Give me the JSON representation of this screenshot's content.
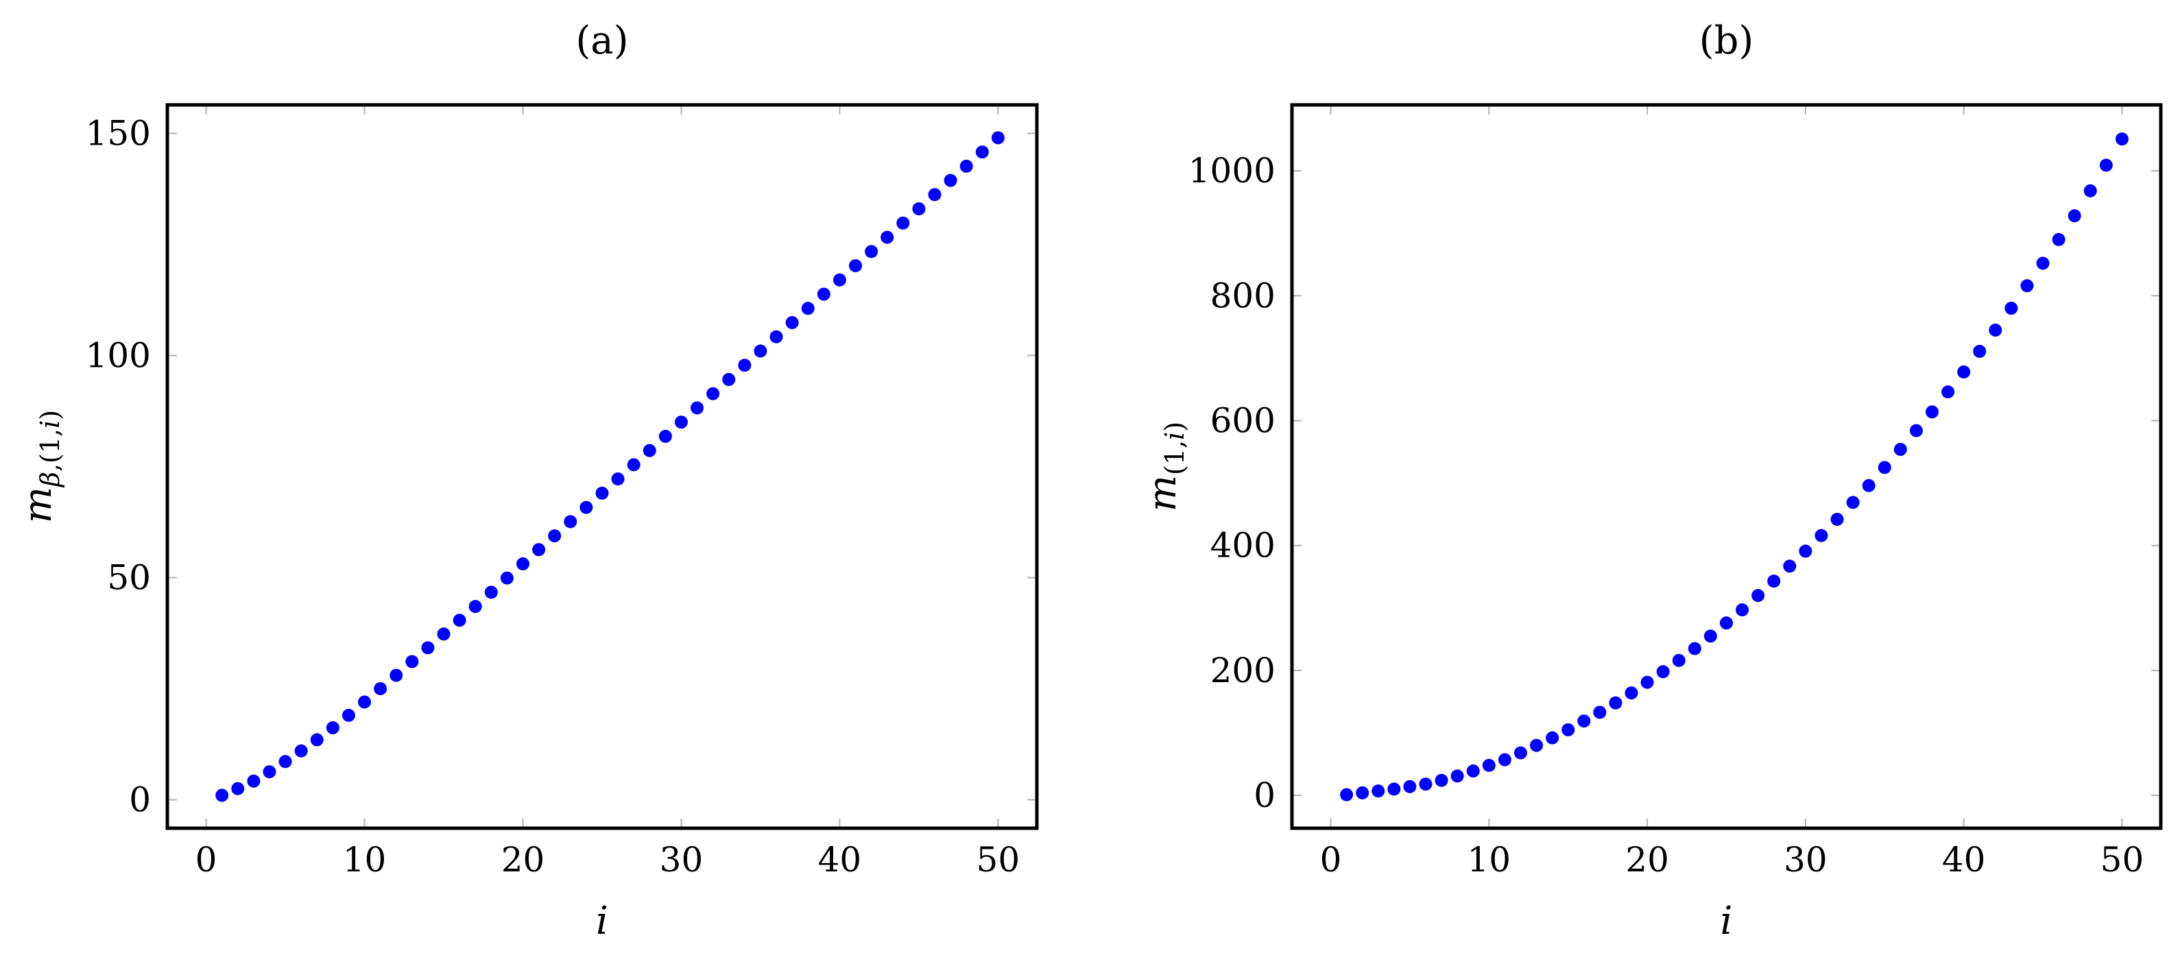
{
  "chart_data": [
    {
      "type": "scatter",
      "title": "(a)",
      "xlabel": "i",
      "ylabel": {
        "main": "m",
        "sub_beta": "β",
        "sub_rest": ",(1,",
        "sub_i": "i",
        "sub_close": ")"
      },
      "xlim": [
        -2.45,
        52.45
      ],
      "ylim": [
        -6.4,
        156.4
      ],
      "xticks": [
        0,
        10,
        20,
        30,
        40,
        50
      ],
      "yticks": [
        0,
        50,
        100,
        150
      ],
      "grid": false,
      "marker_color": "#0000ff",
      "series": [
        {
          "x": [
            1,
            2,
            3,
            4,
            5,
            6,
            7,
            8,
            9,
            10,
            11,
            12,
            13,
            14,
            15,
            16,
            17,
            18,
            19,
            20,
            21,
            22,
            23,
            24,
            25,
            26,
            27,
            28,
            29,
            30,
            31,
            32,
            33,
            34,
            35,
            36,
            37,
            38,
            39,
            40,
            41,
            42,
            43,
            44,
            45,
            46,
            47,
            48,
            49,
            50
          ],
          "values": [
            1.0,
            2.5,
            4.2,
            6.3,
            8.6,
            11.0,
            13.5,
            16.2,
            19.0,
            22.0,
            25.0,
            28.0,
            31.1,
            34.2,
            37.3,
            40.4,
            43.5,
            46.7,
            49.9,
            53.1,
            56.3,
            59.4,
            62.6,
            65.8,
            69.0,
            72.2,
            75.4,
            78.6,
            81.8,
            85.0,
            88.2,
            91.4,
            94.6,
            97.8,
            101.0,
            104.2,
            107.4,
            110.6,
            113.8,
            117.0,
            120.2,
            123.4,
            126.6,
            129.8,
            133.0,
            136.2,
            139.4,
            142.6,
            145.8,
            149.0
          ]
        }
      ]
    },
    {
      "type": "scatter",
      "title": "(b)",
      "xlabel": "i",
      "ylabel": {
        "main": "m",
        "sub_beta": "",
        "sub_rest": "(1,",
        "sub_i": "i",
        "sub_close": ")"
      },
      "xlim": [
        -2.45,
        52.45
      ],
      "ylim": [
        -52.6,
        1105.6
      ],
      "xticks": [
        0,
        10,
        20,
        30,
        40,
        50
      ],
      "yticks": [
        0,
        200,
        400,
        600,
        800,
        1000
      ],
      "grid": false,
      "marker_color": "#0000ff",
      "series": [
        {
          "x": [
            1,
            2,
            3,
            4,
            5,
            6,
            7,
            8,
            9,
            10,
            11,
            12,
            13,
            14,
            15,
            16,
            17,
            18,
            19,
            20,
            21,
            22,
            23,
            24,
            25,
            26,
            27,
            28,
            29,
            30,
            31,
            32,
            33,
            34,
            35,
            36,
            37,
            38,
            39,
            40,
            41,
            42,
            43,
            44,
            45,
            46,
            47,
            48,
            49,
            50
          ],
          "values": [
            1,
            4,
            7,
            10,
            14,
            18,
            24,
            31,
            39,
            48,
            57,
            68,
            80,
            92,
            105,
            119,
            133,
            148,
            164,
            181,
            198,
            216,
            235,
            255,
            276,
            297,
            320,
            343,
            367,
            391,
            416,
            442,
            469,
            496,
            525,
            554,
            584,
            614,
            646,
            678,
            711,
            745,
            780,
            816,
            852,
            890,
            928,
            968,
            1009,
            1051
          ]
        }
      ]
    }
  ]
}
